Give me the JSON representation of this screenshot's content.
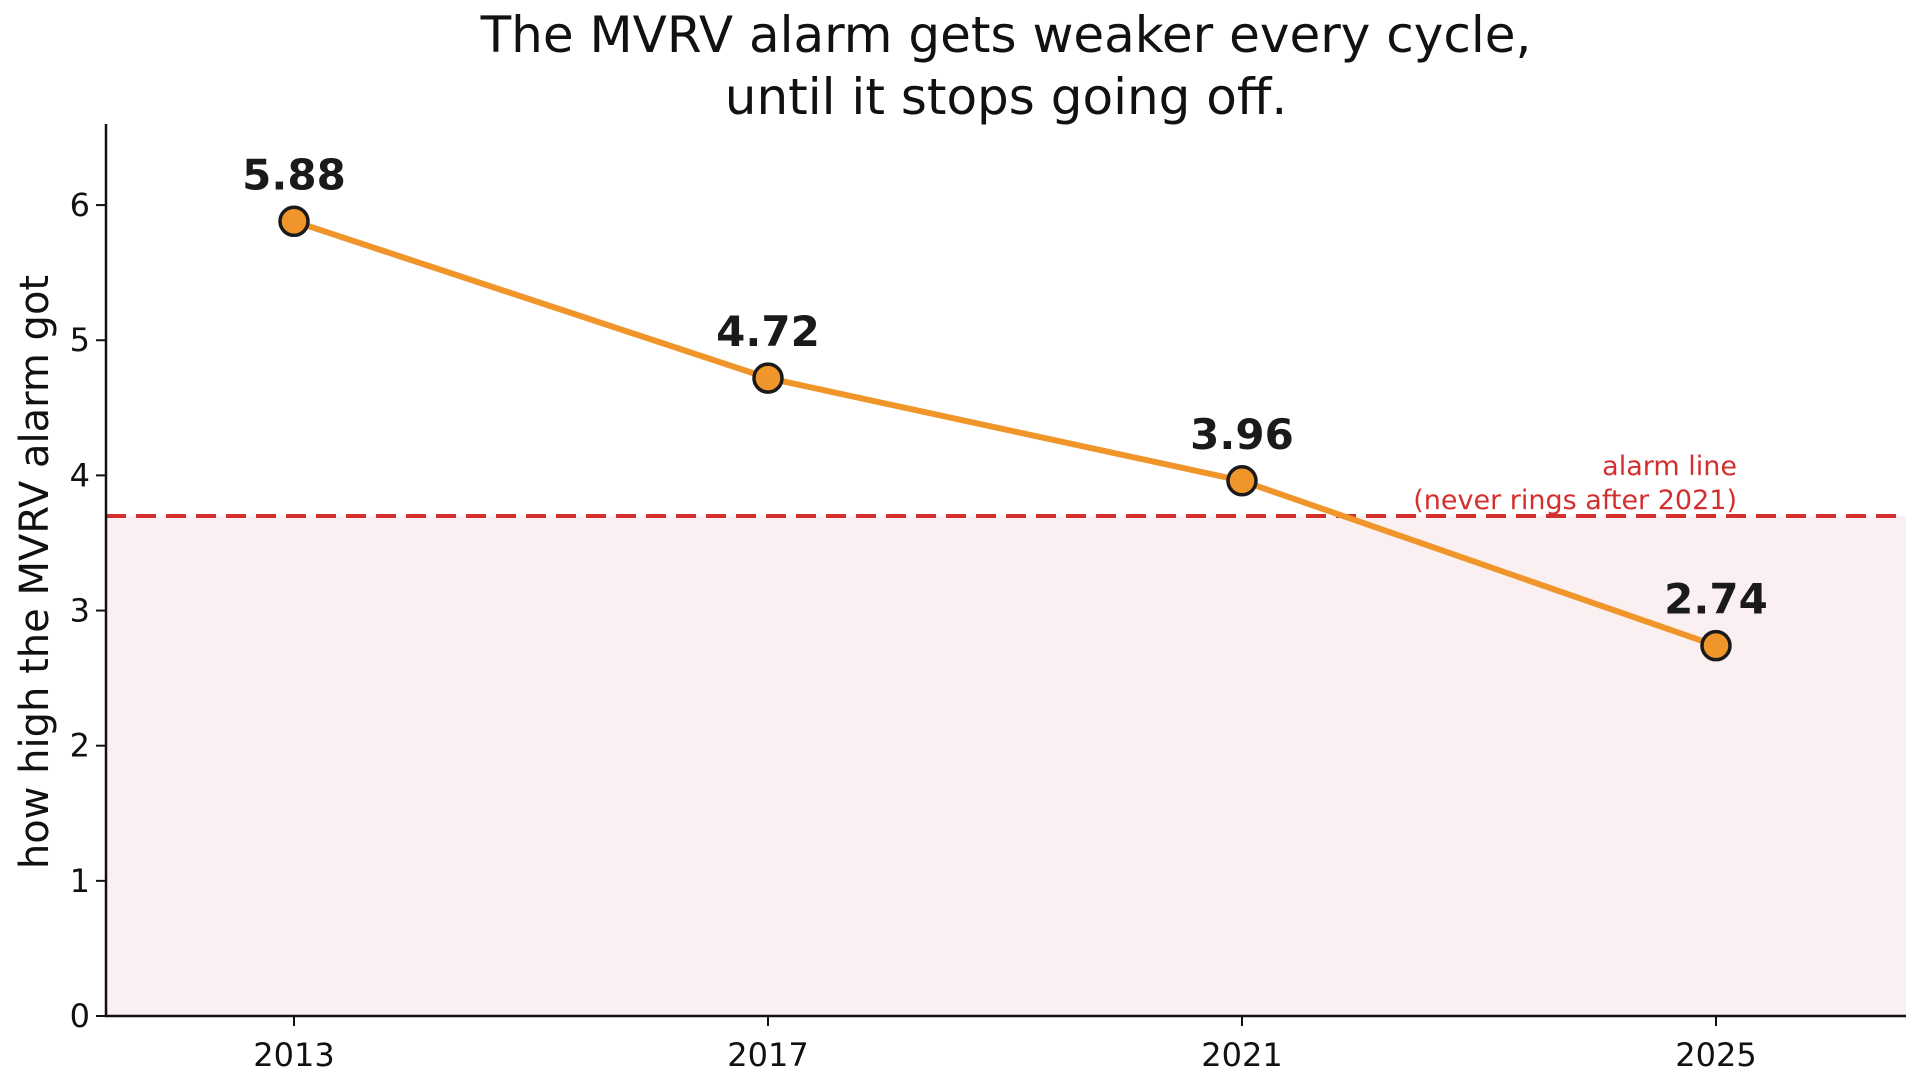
{
  "chart_data": {
    "type": "line",
    "title_lines": [
      "The MVRV alarm gets weaker every cycle,",
      "until it stops going off."
    ],
    "xlabel": "",
    "ylabel": "how high the MVRV alarm got",
    "categories": [
      "2013",
      "2017",
      "2021",
      "2025"
    ],
    "series": [
      {
        "values": [
          5.88,
          4.72,
          3.96,
          2.74
        ],
        "color": "#F0952A"
      }
    ],
    "data_labels": [
      "5.88",
      "4.72",
      "3.96",
      "2.74"
    ],
    "ylim": [
      0,
      6.6
    ],
    "yticks": [
      0,
      1,
      2,
      3,
      4,
      5,
      6
    ],
    "threshold": {
      "value": 3.7,
      "color": "#D32F2F",
      "style": "dashed",
      "label_lines": [
        "alarm line",
        "(never rings after 2021)"
      ]
    },
    "shaded_region": {
      "from": 0,
      "to": 3.7,
      "color": "#FBF0F1"
    },
    "grid": false,
    "legend": "none",
    "colors": {
      "line": "#F0952A",
      "marker_edge": "#1a1a1a",
      "axis": "#111111",
      "threshold": "#D32F2F"
    }
  }
}
